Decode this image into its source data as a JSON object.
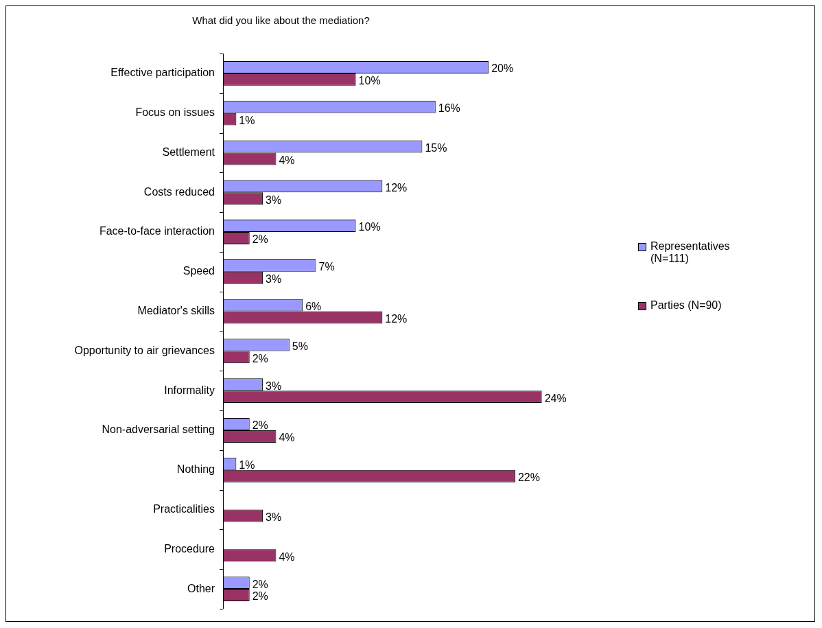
{
  "chart_data": {
    "type": "bar",
    "orientation": "horizontal",
    "title": "What did you like about the mediation?",
    "categories": [
      "Effective participation",
      "Focus on issues",
      "Settlement",
      "Costs reduced",
      "Face-to-face interaction",
      "Speed",
      "Mediator's skills",
      "Opportunity to air grievances",
      "Informality",
      "Non-adversarial setting",
      "Nothing",
      "Practicalities",
      "Procedure",
      "Other"
    ],
    "series": [
      {
        "name": "Representatives (N=111)",
        "color": "#9999ff",
        "values": [
          20,
          16,
          15,
          12,
          10,
          7,
          6,
          5,
          3,
          2,
          1,
          null,
          null,
          2
        ],
        "value_labels": [
          "20%",
          "16%",
          "15%",
          "12%",
          "10%",
          "7%",
          "6%",
          "5%",
          "3%",
          "2%",
          "1%",
          null,
          null,
          "2%"
        ]
      },
      {
        "name": "Parties (N=90)",
        "color": "#993366",
        "values": [
          10,
          1,
          4,
          3,
          2,
          3,
          12,
          2,
          24,
          4,
          22,
          3,
          4,
          2
        ],
        "value_labels": [
          "10%",
          "1%",
          "4%",
          "3%",
          "2%",
          "3%",
          "12%",
          "2%",
          "24%",
          "4%",
          "22%",
          "3%",
          "4%",
          "2%"
        ]
      }
    ],
    "legend": "right"
  }
}
